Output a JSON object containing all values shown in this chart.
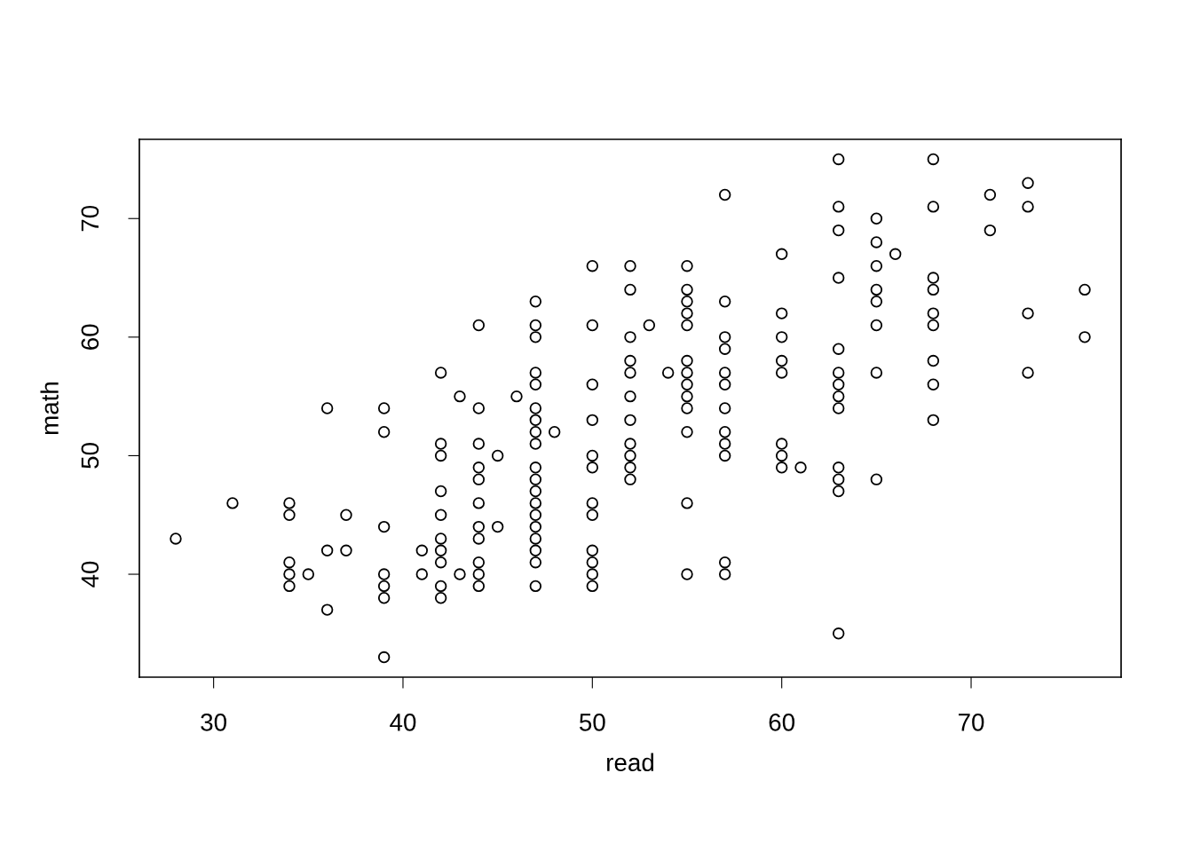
{
  "chart_data": {
    "type": "scatter",
    "xlabel": "read",
    "ylabel": "math",
    "marker": "circle",
    "xlim": [
      26.08,
      77.92
    ],
    "ylim": [
      31.32,
      76.68
    ],
    "xticks": [
      30,
      40,
      50,
      60,
      70
    ],
    "yticks": [
      40,
      50,
      60,
      70
    ],
    "series": [
      {
        "color": "#000000",
        "x": [
          28,
          31,
          34,
          34,
          34,
          34,
          34,
          35,
          36,
          36,
          36,
          37,
          37,
          39,
          39,
          39,
          39,
          39,
          39,
          39,
          41,
          41,
          42,
          42,
          42,
          42,
          42,
          42,
          42,
          42,
          42,
          42,
          43,
          43,
          44,
          44,
          44,
          44,
          44,
          44,
          44,
          44,
          44,
          44,
          44,
          45,
          45,
          46,
          47,
          47,
          47,
          47,
          47,
          47,
          47,
          47,
          47,
          47,
          47,
          47,
          47,
          47,
          47,
          47,
          47,
          47,
          47,
          48,
          50,
          50,
          50,
          50,
          50,
          50,
          50,
          50,
          50,
          50,
          50,
          50,
          52,
          52,
          52,
          52,
          52,
          52,
          52,
          52,
          52,
          52,
          52,
          53,
          54,
          55,
          55,
          55,
          55,
          55,
          55,
          55,
          55,
          55,
          55,
          55,
          55,
          55,
          57,
          57,
          57,
          57,
          57,
          57,
          57,
          57,
          57,
          57,
          57,
          57,
          60,
          60,
          60,
          60,
          60,
          60,
          60,
          60,
          61,
          63,
          63,
          63,
          63,
          63,
          63,
          63,
          63,
          63,
          63,
          63,
          63,
          63,
          65,
          65,
          65,
          65,
          65,
          65,
          65,
          65,
          66,
          68,
          68,
          68,
          68,
          68,
          68,
          68,
          68,
          68,
          71,
          71,
          73,
          73,
          73,
          73,
          76,
          76
        ],
        "values": [
          43,
          46,
          46,
          45,
          41,
          40,
          39,
          40,
          54,
          42,
          37,
          45,
          42,
          54,
          52,
          44,
          40,
          39,
          38,
          33,
          42,
          40,
          57,
          51,
          50,
          47,
          45,
          43,
          42,
          41,
          39,
          38,
          55,
          40,
          61,
          54,
          51,
          49,
          48,
          46,
          44,
          43,
          41,
          40,
          39,
          50,
          44,
          55,
          63,
          61,
          60,
          57,
          56,
          54,
          53,
          52,
          51,
          49,
          48,
          47,
          46,
          45,
          44,
          43,
          42,
          41,
          39,
          52,
          66,
          61,
          56,
          53,
          50,
          49,
          46,
          45,
          42,
          41,
          40,
          39,
          66,
          64,
          60,
          58,
          57,
          55,
          53,
          51,
          50,
          49,
          48,
          61,
          57,
          66,
          64,
          63,
          62,
          61,
          58,
          57,
          56,
          55,
          54,
          52,
          46,
          40,
          72,
          63,
          60,
          59,
          57,
          56,
          54,
          52,
          51,
          50,
          41,
          40,
          67,
          62,
          60,
          58,
          57,
          51,
          50,
          49,
          49,
          75,
          71,
          69,
          65,
          59,
          57,
          56,
          55,
          54,
          49,
          48,
          47,
          35,
          70,
          68,
          66,
          64,
          63,
          61,
          57,
          48,
          67,
          75,
          71,
          65,
          64,
          62,
          61,
          58,
          56,
          53,
          72,
          69,
          73,
          71,
          62,
          57,
          64,
          60
        ]
      }
    ]
  }
}
